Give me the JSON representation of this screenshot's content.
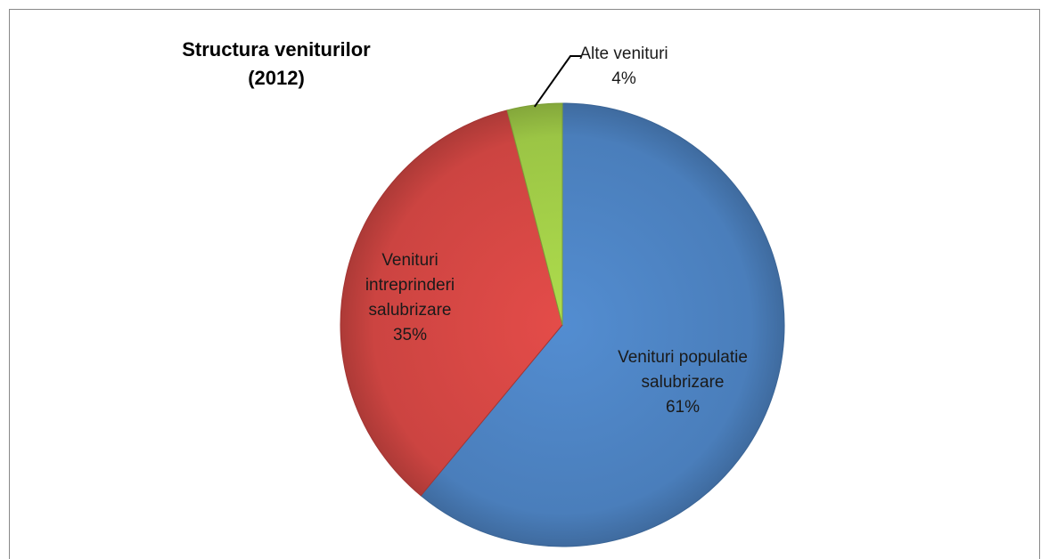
{
  "chart_data": {
    "type": "pie",
    "title": "Structura veniturilor (2012)",
    "categories": [
      "Venituri populatie salubrizare",
      "Venituri intreprinderi salubrizare",
      "Alte venituri"
    ],
    "values": [
      61,
      35,
      4
    ],
    "value_labels": [
      "61%",
      "35%",
      "4%"
    ],
    "colors": [
      "#4a7ebb",
      "#cc4441",
      "#9bc545"
    ]
  }
}
